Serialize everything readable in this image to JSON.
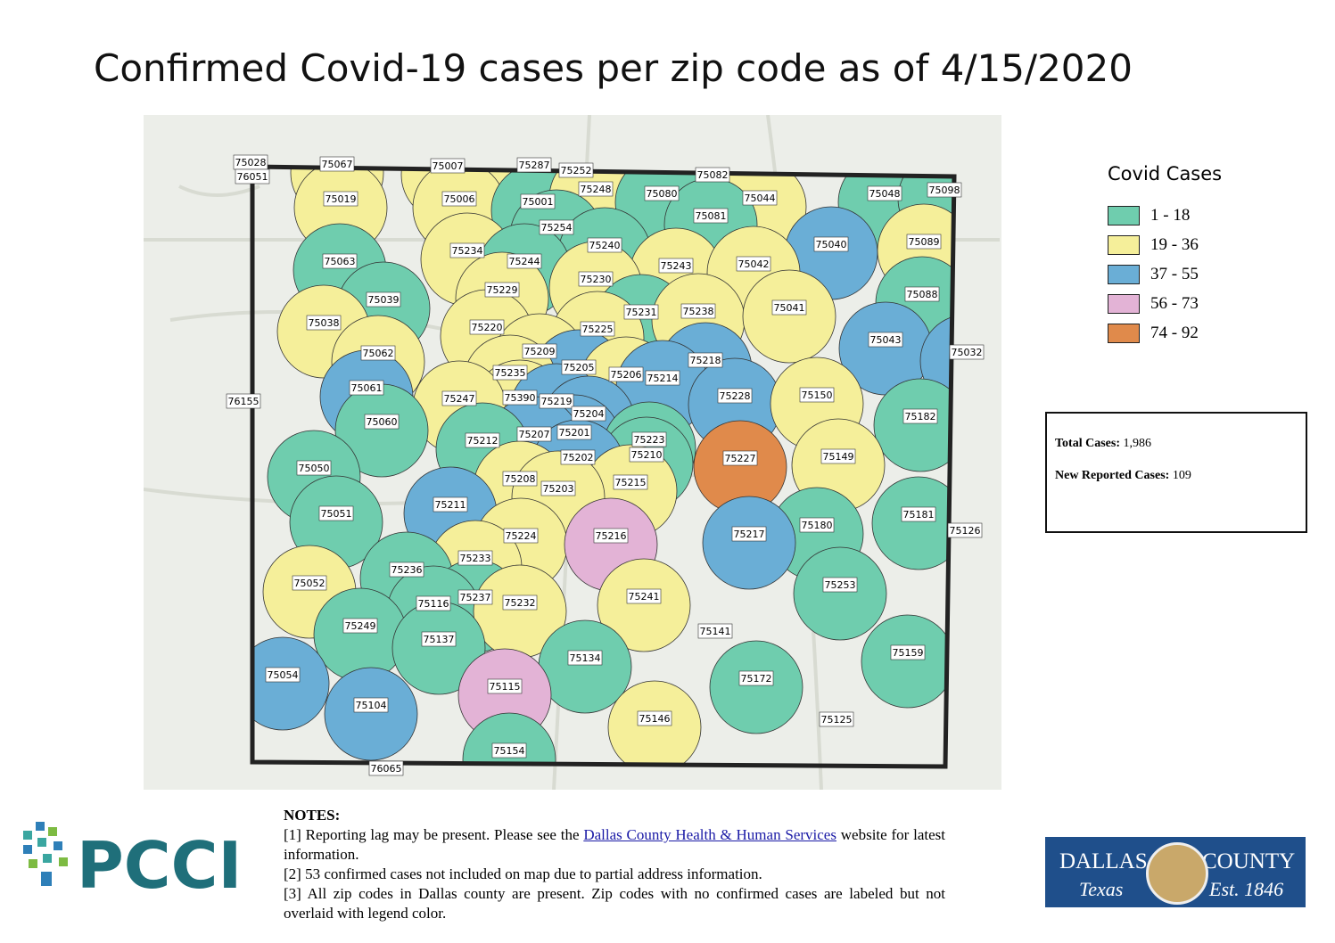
{
  "title": "Confirmed Covid-19 cases per zip code as of 4/15/2020",
  "legend": {
    "title": "Covid Cases",
    "items": [
      {
        "label": "1 - 18",
        "color": "#6fcdae"
      },
      {
        "label": "19 - 36",
        "color": "#f5ef9a"
      },
      {
        "label": "37 - 55",
        "color": "#6aaed6"
      },
      {
        "label": "56 - 73",
        "color": "#e3b3d6"
      },
      {
        "label": "74 - 92",
        "color": "#e08a4b"
      }
    ]
  },
  "stats": {
    "total_label": "Total Cases:",
    "total": "1,986",
    "new_label": "New Reported Cases:",
    "new": "109"
  },
  "notes": {
    "heading": "NOTES:",
    "n1_before": "[1] Reporting lag may be present. Please see the",
    "n1_link": "Dallas County Health & Human Services",
    "n1_after": "website for latest information.",
    "n2": "[2] 53 confirmed cases not included on map due to partial address information.",
    "n3": "[3] All zip codes in Dallas county are present. Zip codes with no confirmed cases are labeled but not overlaid with legend color."
  },
  "logos": {
    "pcci": "PCCI",
    "dallas": "DALLAS",
    "county": "COUNTY",
    "texas": "Texas",
    "est": "Est. 1846"
  },
  "zips": [
    {
      "label": "75028",
      "color": null
    },
    {
      "label": "76051",
      "color": null
    },
    {
      "label": "75067",
      "color": "#f5ef9a"
    },
    {
      "label": "75007",
      "color": "#f5ef9a"
    },
    {
      "label": "75287",
      "color": "#f5ef9a"
    },
    {
      "label": "75252",
      "color": "#f5ef9a"
    },
    {
      "label": "75082",
      "color": "#6fcdae"
    },
    {
      "label": "75019",
      "color": "#f5ef9a"
    },
    {
      "label": "75006",
      "color": "#f5ef9a"
    },
    {
      "label": "75001",
      "color": "#6fcdae"
    },
    {
      "label": "75248",
      "color": "#f5ef9a"
    },
    {
      "label": "75080",
      "color": "#6fcdae"
    },
    {
      "label": "75044",
      "color": "#f5ef9a"
    },
    {
      "label": "75048",
      "color": "#6fcdae"
    },
    {
      "label": "75098",
      "color": "#6fcdae"
    },
    {
      "label": "75081",
      "color": "#6fcdae"
    },
    {
      "label": "75254",
      "color": "#6fcdae"
    },
    {
      "label": "75240",
      "color": "#6fcdae"
    },
    {
      "label": "75040",
      "color": "#6aaed6"
    },
    {
      "label": "75089",
      "color": "#f5ef9a"
    },
    {
      "label": "75234",
      "color": "#f5ef9a"
    },
    {
      "label": "75063",
      "color": "#6fcdae"
    },
    {
      "label": "75244",
      "color": "#6fcdae"
    },
    {
      "label": "75243",
      "color": "#f5ef9a"
    },
    {
      "label": "75042",
      "color": "#f5ef9a"
    },
    {
      "label": "75230",
      "color": "#f5ef9a"
    },
    {
      "label": "75229",
      "color": "#f5ef9a"
    },
    {
      "label": "75039",
      "color": "#6fcdae"
    },
    {
      "label": "75088",
      "color": "#6fcdae"
    },
    {
      "label": "75231",
      "color": "#6fcdae"
    },
    {
      "label": "75238",
      "color": "#f5ef9a"
    },
    {
      "label": "75041",
      "color": "#f5ef9a"
    },
    {
      "label": "75038",
      "color": "#f5ef9a"
    },
    {
      "label": "75220",
      "color": "#f5ef9a"
    },
    {
      "label": "75225",
      "color": "#f5ef9a"
    },
    {
      "label": "75043",
      "color": "#6aaed6"
    },
    {
      "label": "75032",
      "color": "#6aaed6"
    },
    {
      "label": "75062",
      "color": "#f5ef9a"
    },
    {
      "label": "75209",
      "color": "#f5ef9a"
    },
    {
      "label": "75218",
      "color": "#6aaed6"
    },
    {
      "label": "75205",
      "color": "#6aaed6"
    },
    {
      "label": "75206",
      "color": "#f5ef9a"
    },
    {
      "label": "75214",
      "color": "#6aaed6"
    },
    {
      "label": "75235",
      "color": "#f5ef9a"
    },
    {
      "label": "75061",
      "color": "#6aaed6"
    },
    {
      "label": "75390",
      "color": "#f5ef9a"
    },
    {
      "label": "75247",
      "color": "#f5ef9a"
    },
    {
      "label": "75219",
      "color": "#6aaed6"
    },
    {
      "label": "75228",
      "color": "#6aaed6"
    },
    {
      "label": "75150",
      "color": "#f5ef9a"
    },
    {
      "label": "76155",
      "color": null
    },
    {
      "label": "75204",
      "color": "#6aaed6"
    },
    {
      "label": "75182",
      "color": "#6fcdae"
    },
    {
      "label": "75060",
      "color": "#6fcdae"
    },
    {
      "label": "75201",
      "color": "#6aaed6"
    },
    {
      "label": "75207",
      "color": "#6aaed6"
    },
    {
      "label": "75212",
      "color": "#6fcdae"
    },
    {
      "label": "75223",
      "color": "#6fcdae"
    },
    {
      "label": "75227",
      "color": "#e08a4b"
    },
    {
      "label": "75210",
      "color": "#6fcdae"
    },
    {
      "label": "75202",
      "color": "#6aaed6"
    },
    {
      "label": "75149",
      "color": "#f5ef9a"
    },
    {
      "label": "75050",
      "color": "#6fcdae"
    },
    {
      "label": "75208",
      "color": "#f5ef9a"
    },
    {
      "label": "75215",
      "color": "#f5ef9a"
    },
    {
      "label": "75203",
      "color": "#f5ef9a"
    },
    {
      "label": "75211",
      "color": "#6aaed6"
    },
    {
      "label": "75051",
      "color": "#6fcdae"
    },
    {
      "label": "75181",
      "color": "#6fcdae"
    },
    {
      "label": "75180",
      "color": "#6fcdae"
    },
    {
      "label": "75126",
      "color": null
    },
    {
      "label": "75224",
      "color": "#f5ef9a"
    },
    {
      "label": "75216",
      "color": "#e3b3d6"
    },
    {
      "label": "75217",
      "color": "#6aaed6"
    },
    {
      "label": "75233",
      "color": "#f5ef9a"
    },
    {
      "label": "75236",
      "color": "#6fcdae"
    },
    {
      "label": "75253",
      "color": "#6fcdae"
    },
    {
      "label": "75052",
      "color": "#f5ef9a"
    },
    {
      "label": "75241",
      "color": "#f5ef9a"
    },
    {
      "label": "75237",
      "color": "#6fcdae"
    },
    {
      "label": "75116",
      "color": "#6fcdae"
    },
    {
      "label": "75232",
      "color": "#f5ef9a"
    },
    {
      "label": "75249",
      "color": "#6fcdae"
    },
    {
      "label": "75141",
      "color": null
    },
    {
      "label": "75137",
      "color": "#6fcdae"
    },
    {
      "label": "75159",
      "color": "#6fcdae"
    },
    {
      "label": "75134",
      "color": "#6fcdae"
    },
    {
      "label": "75054",
      "color": "#6aaed6"
    },
    {
      "label": "75172",
      "color": "#6fcdae"
    },
    {
      "label": "75115",
      "color": "#e3b3d6"
    },
    {
      "label": "75104",
      "color": "#6aaed6"
    },
    {
      "label": "75146",
      "color": "#f5ef9a"
    },
    {
      "label": "75125",
      "color": null
    },
    {
      "label": "75154",
      "color": "#6fcdae"
    },
    {
      "label": "76065",
      "color": null
    }
  ]
}
